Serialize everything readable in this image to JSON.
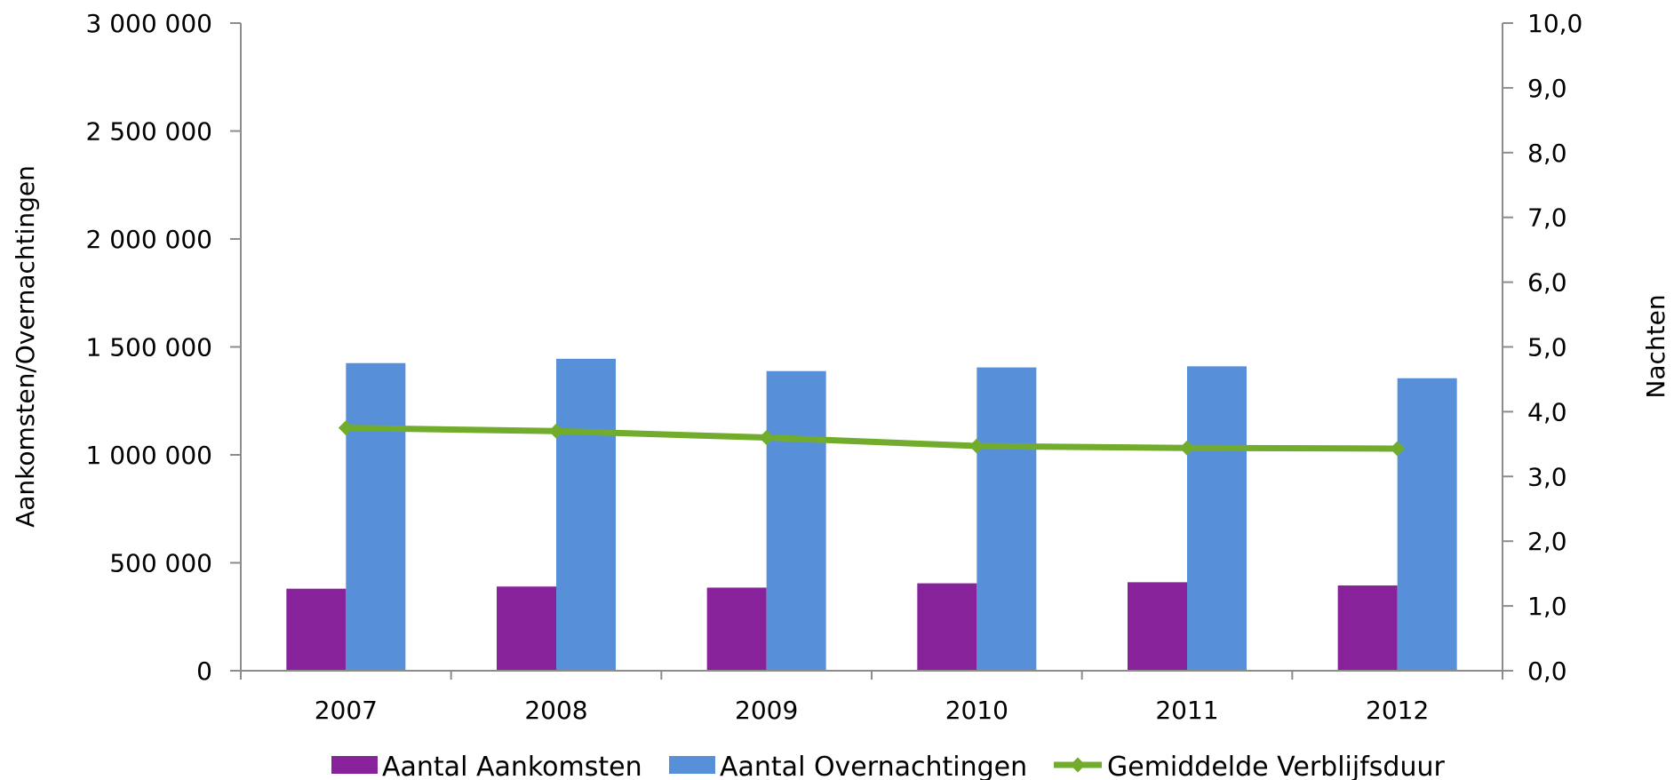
{
  "chart_data": {
    "type": "bar",
    "categories": [
      "2007",
      "2008",
      "2009",
      "2010",
      "2011",
      "2012"
    ],
    "series": [
      {
        "name": "Aantal Aankomsten",
        "kind": "bar",
        "axis": "left",
        "color": "#88229B",
        "values": [
          380000,
          390000,
          385000,
          405000,
          410000,
          395000
        ]
      },
      {
        "name": "Aantal Overnachtingen",
        "kind": "bar",
        "axis": "left",
        "color": "#5790D8",
        "values": [
          1425000,
          1445000,
          1388000,
          1405000,
          1410000,
          1355000
        ]
      },
      {
        "name": "Gemiddelde Verblijfsduur",
        "kind": "line",
        "axis": "right",
        "color": "#71AC2C",
        "values": [
          3.75,
          3.7,
          3.6,
          3.47,
          3.44,
          3.43
        ]
      }
    ],
    "y_left": {
      "label": "Aankomsten/Overnachtingen",
      "ylim": [
        0,
        3000000
      ],
      "ticks": [
        0,
        500000,
        1000000,
        1500000,
        2000000,
        2500000,
        3000000
      ],
      "tick_labels": [
        "0",
        "500 000",
        "1 000 000",
        "1 500 000",
        "2 000 000",
        "2 500 000",
        "3 000 000"
      ]
    },
    "y_right": {
      "label": "Nachten",
      "ylim": [
        0,
        10
      ],
      "ticks": [
        0,
        1,
        2,
        3,
        4,
        5,
        6,
        7,
        8,
        9,
        10
      ],
      "tick_labels": [
        "0,0",
        "1,0",
        "2,0",
        "3,0",
        "4,0",
        "5,0",
        "6,0",
        "7,0",
        "8,0",
        "9,0",
        "10,0"
      ]
    },
    "grid": false,
    "legend_position": "bottom"
  }
}
